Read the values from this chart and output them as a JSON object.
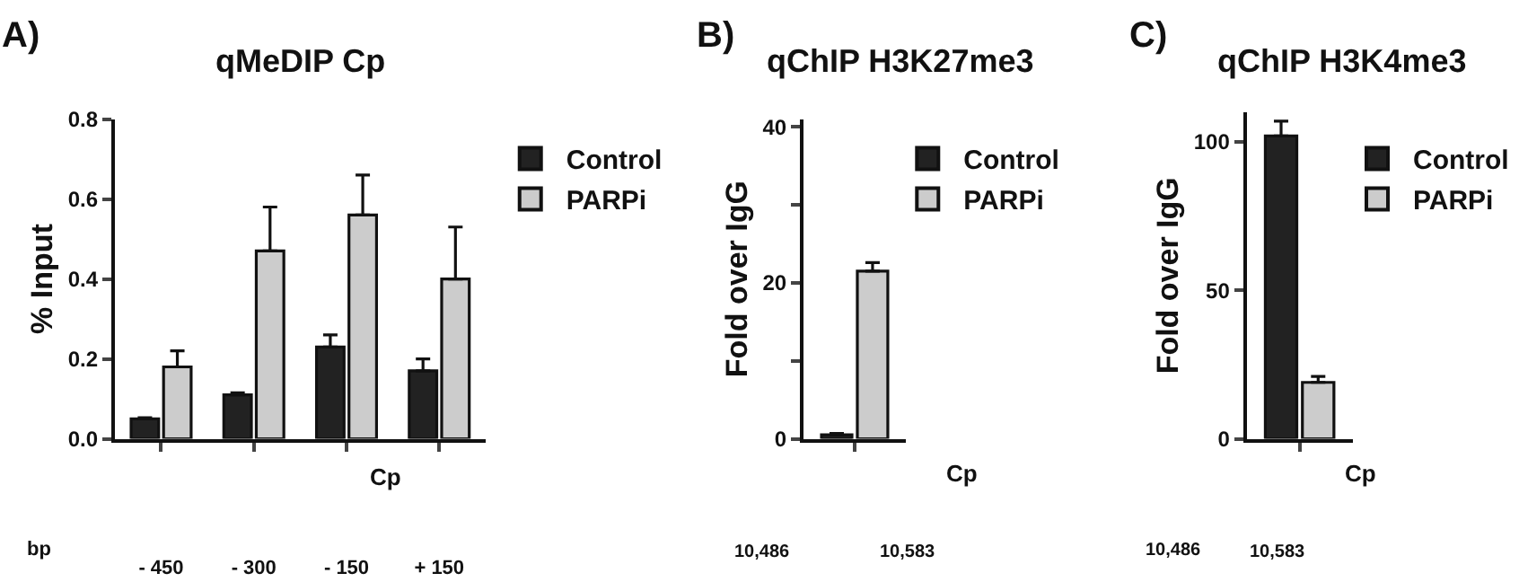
{
  "chart_data": [
    {
      "type": "bar",
      "title": "qMeDIP Cp",
      "ylabel": "% Input",
      "categories": [
        "- 450",
        "- 300",
        "- 150",
        "+ 150"
      ],
      "series": [
        {
          "name": "Control",
          "color": "#222222",
          "values": [
            0.05,
            0.11,
            0.23,
            0.17
          ],
          "errors": [
            [
              0.05,
              0.053
            ],
            [
              0.11,
              0.115
            ],
            [
              0.23,
              0.26
            ],
            [
              0.17,
              0.2
            ]
          ]
        },
        {
          "name": "PARPi",
          "color": "#cccccc",
          "values": [
            0.18,
            0.47,
            0.56,
            0.4
          ],
          "errors": [
            [
              0.18,
              0.22
            ],
            [
              0.47,
              0.58
            ],
            [
              0.56,
              0.66
            ],
            [
              0.4,
              0.53
            ]
          ]
        }
      ],
      "ylim": [
        0,
        0.8
      ],
      "yticks": [
        {
          "value": 0,
          "label": "0.0"
        },
        0.2,
        0.4,
        0.6,
        0.8
      ],
      "legend": "top right",
      "annotations": [
        "A)",
        "Cp",
        "bp"
      ]
    },
    {
      "type": "bar",
      "title": "qChIP H3K27me3",
      "ylabel": "Fold over IgG",
      "categories": [
        null
      ],
      "series": [
        {
          "name": "Control",
          "color": "#222222",
          "values": [
            0.5
          ],
          "errors": [
            [
              0.5,
              0.7
            ]
          ]
        },
        {
          "name": "PARPi",
          "color": "#cccccc",
          "values": [
            21.5
          ],
          "errors": [
            [
              21.5,
              22.6
            ]
          ]
        }
      ],
      "ylim": [
        0,
        41
      ],
      "yticks": [
        0,
        {
          "value": 10,
          "label": null
        },
        20,
        {
          "value": 30,
          "label": null
        },
        40
      ],
      "legend": "top right",
      "annotations": [
        "B)",
        "Cp",
        "10,486",
        "10,583"
      ]
    },
    {
      "type": "bar",
      "title": "qChIP H3K4me3",
      "ylabel": "Fold over IgG",
      "categories": [
        null
      ],
      "series": [
        {
          "name": "Control",
          "color": "#222222",
          "values": [
            102
          ],
          "errors": [
            [
              102,
              107
            ]
          ]
        },
        {
          "name": "PARPi",
          "color": "#cccccc",
          "values": [
            19
          ],
          "errors": [
            [
              19,
              21
            ]
          ]
        }
      ],
      "ylim": [
        0,
        110
      ],
      "yticks": [
        0,
        50,
        100
      ],
      "legend": "top right",
      "annotations": [
        "C)",
        "Cp",
        "10,486",
        "10,583"
      ]
    }
  ]
}
